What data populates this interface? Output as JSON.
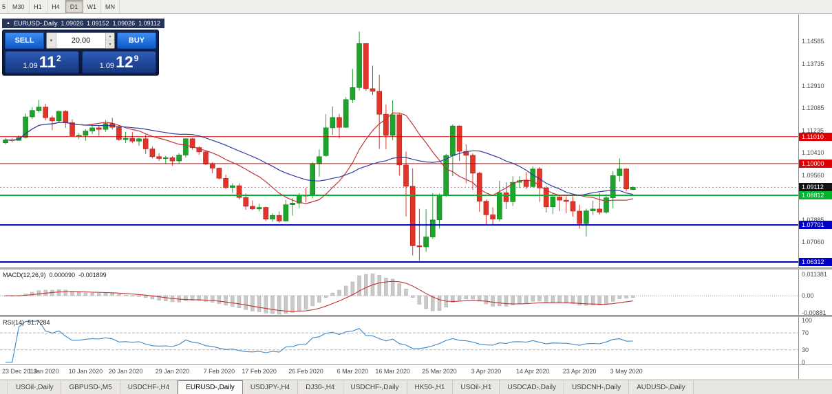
{
  "toolbar": {
    "partial_button": "5",
    "periods": [
      {
        "label": "M30",
        "active": false
      },
      {
        "label": "H1",
        "active": false
      },
      {
        "label": "H4",
        "active": false
      },
      {
        "label": "D1",
        "active": true
      },
      {
        "label": "W1",
        "active": false
      },
      {
        "label": "MN",
        "active": false
      }
    ]
  },
  "chart": {
    "title": {
      "symbol": "EURUSD-,Daily",
      "open": "1.09026",
      "high": "1.09152",
      "low": "1.09026",
      "close": "1.09112"
    }
  },
  "trade": {
    "sell_label": "SELL",
    "buy_label": "BUY",
    "volume": "20.00",
    "bid": {
      "prefix": "1.09",
      "main": "11",
      "pip": "2"
    },
    "ask": {
      "prefix": "1.09",
      "main": "12",
      "pip": "9"
    }
  },
  "price_axis": {
    "ticks": [
      "1.14585",
      "1.13735",
      "1.12910",
      "1.12085",
      "1.11235",
      "1.10410",
      "1.09560",
      "1.08735",
      "1.07885",
      "1.07060"
    ],
    "tags": [
      {
        "value": "1.11010",
        "price": 1.1101,
        "color": "#dd0000",
        "kind": "level"
      },
      {
        "value": "1.10000",
        "price": 1.1,
        "color": "#dd0000",
        "kind": "level"
      },
      {
        "value": "1.09112",
        "price": 1.09112,
        "color": "#141414",
        "kind": "current"
      },
      {
        "value": "1.08812",
        "price": 1.08812,
        "color": "#00b52c",
        "kind": "level"
      },
      {
        "value": "1.07701",
        "price": 1.07701,
        "color": "#0000c4",
        "kind": "level"
      },
      {
        "value": "1.06312",
        "price": 1.06312,
        "color": "#0000c4",
        "kind": "level"
      }
    ]
  },
  "chart_data": {
    "type": "candlestick",
    "symbol": "EURUSD-",
    "period": "Daily",
    "current_price": 1.09112,
    "bull_color": "#1ea32b",
    "bear_color": "#e23428",
    "candles": [
      [
        1.1078,
        1.1096,
        1.1072,
        1.1089
      ],
      [
        1.1089,
        1.1094,
        1.108,
        1.1087
      ],
      [
        1.1087,
        1.1106,
        1.1085,
        1.1098
      ],
      [
        1.1098,
        1.1188,
        1.1094,
        1.1175
      ],
      [
        1.1175,
        1.1212,
        1.1167,
        1.1199
      ],
      [
        1.1199,
        1.1239,
        1.1192,
        1.1212
      ],
      [
        1.1212,
        1.1224,
        1.1162,
        1.1172
      ],
      [
        1.1172,
        1.118,
        1.1125,
        1.116
      ],
      [
        1.116,
        1.1199,
        1.1156,
        1.1196
      ],
      [
        1.1196,
        1.12,
        1.1134,
        1.1153
      ],
      [
        1.1153,
        1.1166,
        1.1103,
        1.1104
      ],
      [
        1.1104,
        1.1113,
        1.1092,
        1.1106
      ],
      [
        1.1106,
        1.1128,
        1.1085,
        1.1122
      ],
      [
        1.1122,
        1.1148,
        1.1111,
        1.1134
      ],
      [
        1.1134,
        1.1144,
        1.1104,
        1.1128
      ],
      [
        1.1128,
        1.1163,
        1.1119,
        1.115
      ],
      [
        1.115,
        1.1172,
        1.1128,
        1.1136
      ],
      [
        1.1136,
        1.114,
        1.1085,
        1.109
      ],
      [
        1.109,
        1.1119,
        1.1077,
        1.1095
      ],
      [
        1.1095,
        1.1118,
        1.1076,
        1.1084
      ],
      [
        1.1084,
        1.1097,
        1.1066,
        1.1093
      ],
      [
        1.1093,
        1.1109,
        1.1036,
        1.1055
      ],
      [
        1.1055,
        1.1064,
        1.1019,
        1.1026
      ],
      [
        1.1026,
        1.1039,
        1.101,
        1.1019
      ],
      [
        1.1019,
        1.1029,
        1.0998,
        1.1022
      ],
      [
        1.1022,
        1.1028,
        1.0992,
        1.101
      ],
      [
        1.101,
        1.1039,
        1.1,
        1.1032
      ],
      [
        1.1032,
        1.1095,
        1.1023,
        1.1093
      ],
      [
        1.1093,
        1.1096,
        1.1052,
        1.106
      ],
      [
        1.106,
        1.1065,
        1.1033,
        1.1044
      ],
      [
        1.1044,
        1.1048,
        1.0994,
        1.0998
      ],
      [
        1.0998,
        1.1005,
        1.0964,
        1.0983
      ],
      [
        1.0983,
        1.0985,
        1.0941,
        1.0945
      ],
      [
        1.0945,
        1.0958,
        1.0905,
        1.091
      ],
      [
        1.091,
        1.0926,
        1.089,
        1.0917
      ],
      [
        1.0917,
        1.0926,
        1.0865,
        1.0873
      ],
      [
        1.0873,
        1.0888,
        1.0827,
        1.084
      ],
      [
        1.084,
        1.0862,
        1.0825,
        1.083
      ],
      [
        1.083,
        1.085,
        1.0821,
        1.0836
      ],
      [
        1.0836,
        1.0839,
        1.0785,
        1.0792
      ],
      [
        1.0792,
        1.0814,
        1.0782,
        1.0806
      ],
      [
        1.0806,
        1.0821,
        1.0778,
        1.0785
      ],
      [
        1.0785,
        1.0864,
        1.0783,
        1.0846
      ],
      [
        1.0846,
        1.0871,
        1.0805,
        1.0852
      ],
      [
        1.0852,
        1.089,
        1.0834,
        1.0881
      ],
      [
        1.0881,
        1.0909,
        1.0855,
        1.088
      ],
      [
        1.088,
        1.1006,
        1.087,
        1.0999
      ],
      [
        1.0999,
        1.1053,
        1.0951,
        1.1026
      ],
      [
        1.103,
        1.1185,
        1.1026,
        1.1134
      ],
      [
        1.1134,
        1.1214,
        1.1108,
        1.1173
      ],
      [
        1.1173,
        1.1186,
        1.1095,
        1.1136
      ],
      [
        1.1136,
        1.1249,
        1.1134,
        1.124
      ],
      [
        1.124,
        1.1355,
        1.1227,
        1.1285
      ],
      [
        1.1285,
        1.1495,
        1.1274,
        1.145
      ],
      [
        1.145,
        1.145,
        1.1273,
        1.1281
      ],
      [
        1.1281,
        1.1367,
        1.1257,
        1.1271
      ],
      [
        1.1271,
        1.1333,
        1.1055,
        1.1185
      ],
      [
        1.1185,
        1.1222,
        1.1054,
        1.1106
      ],
      [
        1.1106,
        1.1237,
        1.1088,
        1.1183
      ],
      [
        1.1183,
        1.1189,
        1.0955,
        1.0995
      ],
      [
        1.0995,
        1.1045,
        1.0802,
        1.0915
      ],
      [
        1.0915,
        1.0982,
        1.0656,
        1.0692
      ],
      [
        1.0692,
        1.0831,
        1.0636,
        1.0688
      ],
      [
        1.0688,
        1.0829,
        1.067,
        1.0725
      ],
      [
        1.0725,
        1.0889,
        1.0718,
        1.0789
      ],
      [
        1.0789,
        1.0888,
        1.0757,
        1.0881
      ],
      [
        1.0881,
        1.1037,
        1.0875,
        1.103
      ],
      [
        1.103,
        1.1147,
        1.0953,
        1.1141
      ],
      [
        1.1141,
        1.1144,
        1.101,
        1.1046
      ],
      [
        1.1046,
        1.1072,
        1.0926,
        1.1031
      ],
      [
        1.1031,
        1.1038,
        1.0901,
        1.0964
      ],
      [
        1.0964,
        1.0969,
        1.0819,
        1.0859
      ],
      [
        1.0859,
        1.0865,
        1.0773,
        1.0808
      ],
      [
        1.0808,
        1.0836,
        1.0769,
        1.0792
      ],
      [
        1.0792,
        1.0936,
        1.0783,
        1.0891
      ],
      [
        1.0891,
        1.093,
        1.083,
        1.0857
      ],
      [
        1.0857,
        1.0952,
        1.0841,
        1.093
      ],
      [
        1.093,
        1.0953,
        1.0908,
        1.0936
      ],
      [
        1.0936,
        1.0968,
        1.0905,
        1.0914
      ],
      [
        1.0914,
        1.099,
        1.091,
        1.098
      ],
      [
        1.098,
        1.0987,
        1.0856,
        1.0909
      ],
      [
        1.0909,
        1.0916,
        1.0817,
        1.0838
      ],
      [
        1.0838,
        1.089,
        1.0811,
        1.0875
      ],
      [
        1.0875,
        1.0878,
        1.0822,
        1.0863
      ],
      [
        1.0863,
        1.0878,
        1.0814,
        1.0858
      ],
      [
        1.0858,
        1.0885,
        1.0801,
        1.0822
      ],
      [
        1.0822,
        1.0846,
        1.0756,
        1.0775
      ],
      [
        1.0775,
        1.0831,
        1.0727,
        1.0823
      ],
      [
        1.0823,
        1.0861,
        1.0808,
        1.083
      ],
      [
        1.083,
        1.0889,
        1.0809,
        1.0818
      ],
      [
        1.0818,
        1.0885,
        1.0813,
        1.0872
      ],
      [
        1.0872,
        1.0972,
        1.0833,
        1.0955
      ],
      [
        1.0955,
        1.1019,
        1.0933,
        1.098
      ],
      [
        1.098,
        1.0983,
        1.0896,
        1.0905
      ],
      [
        1.09026,
        1.09152,
        1.09026,
        1.09112
      ]
    ],
    "hlines": [
      {
        "price": 1.1101,
        "color": "#dd0000",
        "width": 1
      },
      {
        "price": 1.1,
        "color": "#dd0000",
        "width": 1
      },
      {
        "price": 1.08812,
        "color": "#00b52c",
        "width": 2
      },
      {
        "price": 1.07701,
        "color": "#0000c4",
        "width": 2
      },
      {
        "price": 1.06312,
        "color": "#0000c4",
        "width": 2
      }
    ],
    "moving_averages": [
      {
        "type": "sma",
        "period": 13,
        "color": "#c53434"
      },
      {
        "type": "sma",
        "period": 26,
        "color": "#2f3d9e"
      }
    ]
  },
  "macd": {
    "label": "MACD(12,26,9)",
    "value_main": "0.000090",
    "value_signal": "-0.001899",
    "axis_labels": {
      "top": "0.011381",
      "zero": "0.00",
      "bottom": "-0.00881"
    },
    "histogram_color": "#c9c9c9",
    "signal_color": "#c03030"
  },
  "rsi": {
    "label": "RSI(14)",
    "value": "51.7284",
    "levels": [
      100,
      70,
      30,
      0
    ],
    "line_color": "#3a87c8"
  },
  "date_axis": {
    "labels": [
      {
        "text": "23 Dec 2019",
        "i": 0
      },
      {
        "text": "1 Jan 2020",
        "i": 5.7
      },
      {
        "text": "10 Jan 2020",
        "i": 12
      },
      {
        "text": "20 Jan 2020",
        "i": 18
      },
      {
        "text": "29 Jan 2020",
        "i": 25
      },
      {
        "text": "7 Feb 2020",
        "i": 32
      },
      {
        "text": "17 Feb 2020",
        "i": 38
      },
      {
        "text": "26 Feb 2020",
        "i": 45
      },
      {
        "text": "6 Mar 2020",
        "i": 52
      },
      {
        "text": "16 Mar 2020",
        "i": 58
      },
      {
        "text": "25 Mar 2020",
        "i": 65
      },
      {
        "text": "3 Apr 2020",
        "i": 72
      },
      {
        "text": "14 Apr 2020",
        "i": 79
      },
      {
        "text": "23 Apr 2020",
        "i": 86
      },
      {
        "text": "3 May 2020",
        "i": 93
      }
    ]
  },
  "tabbar": {
    "tabs": [
      {
        "label": "USOil-,Daily",
        "active": false
      },
      {
        "label": "GBPUSD-,M5",
        "active": false
      },
      {
        "label": "USDCHF-,H4",
        "active": false
      },
      {
        "label": "EURUSD-,Daily",
        "active": true
      },
      {
        "label": "USDJPY-,H4",
        "active": false
      },
      {
        "label": "DJ30-,H4",
        "active": false
      },
      {
        "label": "USDCHF-,Daily",
        "active": false
      },
      {
        "label": "HK50-,H1",
        "active": false
      },
      {
        "label": "USOil-,H1",
        "active": false
      },
      {
        "label": "USDCAD-,Daily",
        "active": false
      },
      {
        "label": "USDCNH-,Daily",
        "active": false
      },
      {
        "label": "AUDUSD-,Daily",
        "active": false
      }
    ]
  }
}
